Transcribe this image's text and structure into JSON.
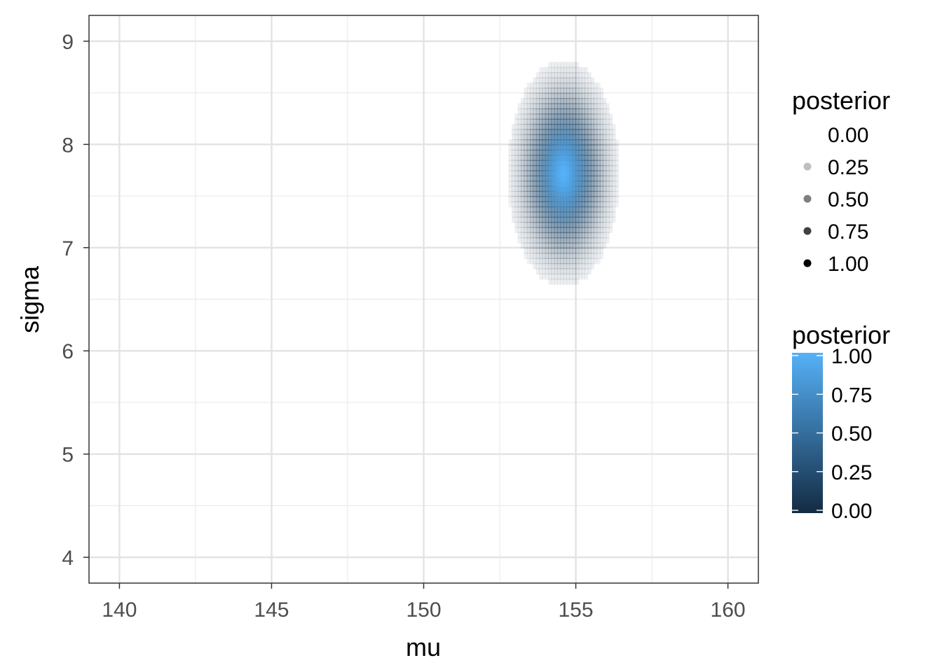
{
  "chart_data": {
    "type": "heatmap",
    "title": "",
    "xlabel": "mu",
    "ylabel": "sigma",
    "xlim": [
      139,
      161
    ],
    "ylim": [
      3.75,
      9.25
    ],
    "x_ticks": [
      140,
      145,
      150,
      155,
      160
    ],
    "y_ticks": [
      4,
      5,
      6,
      7,
      8,
      9
    ],
    "x_tick_labels": [
      "140",
      "145",
      "150",
      "155",
      "160"
    ],
    "y_tick_labels": [
      "4",
      "5",
      "6",
      "7",
      "8",
      "9"
    ],
    "grid": true,
    "posterior_peak": {
      "mu": 154.6,
      "sigma": 7.72
    },
    "posterior_spread": {
      "mu_sd": 0.55,
      "sigma_sd": 0.33
    },
    "grid_resolution": {
      "mu_step": 0.1,
      "sigma_step": 0.05
    },
    "legend_alpha": {
      "title": "posterior",
      "placement": "right",
      "entries": [
        "0.00",
        "0.25",
        "0.50",
        "0.75",
        "1.00"
      ],
      "values": [
        0.0,
        0.25,
        0.5,
        0.75,
        1.0
      ]
    },
    "legend_color": {
      "title": "posterior",
      "placement": "right",
      "labels": [
        "1.00",
        "0.75",
        "0.50",
        "0.25",
        "0.00"
      ],
      "values": [
        1.0,
        0.75,
        0.5,
        0.25,
        0.0
      ],
      "low_color": "#132b43",
      "high_color": "#56b1f7"
    }
  }
}
